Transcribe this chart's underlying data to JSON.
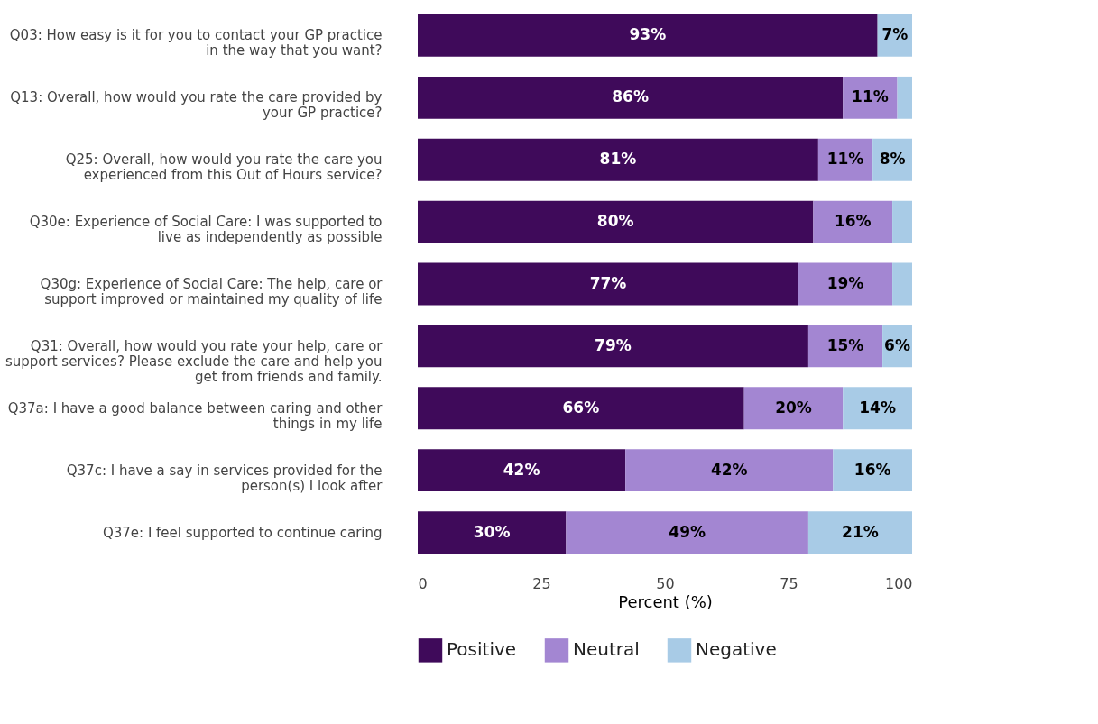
{
  "chart_data": {
    "type": "bar",
    "orientation": "horizontal",
    "stacked": true,
    "xlabel": "Percent (%)",
    "categories": [
      "Q03: How easy is it for you to contact your GP practice\nin the way that you want?",
      "Q13: Overall, how would you rate the care provided by\nyour GP practice?",
      "Q25: Overall, how would you rate the care you\nexperienced from this Out of Hours service?",
      "Q30e: Experience of Social Care: I was supported to\nlive as independently as possible",
      "Q30g: Experience of Social Care: The help, care or\nsupport improved or maintained my quality of life",
      "Q31: Overall, how would you rate your help, care or\nsupport services? Please exclude the care and help you\nget from friends and family.",
      "Q37a: I have a good balance between caring and other\nthings in my life",
      "Q37c: I have a say in services provided for the\nperson(s) I look after",
      "Q37e: I feel supported to continue caring"
    ],
    "series": [
      {
        "name": "Positive",
        "color": "#3f0a5a",
        "values": [
          93,
          86,
          81,
          80,
          77,
          79,
          66,
          42,
          30
        ],
        "value_labels": [
          "93%",
          "86%",
          "81%",
          "80%",
          "77%",
          "79%",
          "66%",
          "42%",
          "30%"
        ]
      },
      {
        "name": "Neutral",
        "color": "#a386d2",
        "values": [
          0,
          11,
          11,
          16,
          19,
          15,
          20,
          42,
          49
        ],
        "value_labels": [
          null,
          "11%",
          "11%",
          "16%",
          "19%",
          "15%",
          "20%",
          "42%",
          "49%"
        ]
      },
      {
        "name": "Negative",
        "color": "#a8cbe6",
        "values": [
          7,
          3,
          8,
          4,
          4,
          6,
          14,
          16,
          21
        ],
        "value_labels": [
          "7%",
          null,
          "8%",
          null,
          null,
          "6%",
          "14%",
          "16%",
          "21%"
        ]
      }
    ],
    "xlim": [
      0,
      100
    ],
    "xticks": [
      0,
      25,
      50,
      75,
      100
    ],
    "grid": false,
    "legend": "bottom"
  }
}
